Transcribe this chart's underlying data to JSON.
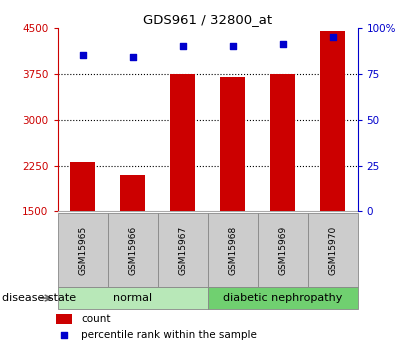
{
  "title": "GDS961 / 32800_at",
  "samples": [
    "GSM15965",
    "GSM15966",
    "GSM15967",
    "GSM15968",
    "GSM15969",
    "GSM15970"
  ],
  "counts": [
    2300,
    2100,
    3750,
    3700,
    3750,
    4450
  ],
  "percentiles": [
    85,
    84,
    90,
    90,
    91,
    95
  ],
  "ylim_left": [
    1500,
    4500
  ],
  "ylim_right": [
    0,
    100
  ],
  "yticks_left": [
    1500,
    2250,
    3000,
    3750,
    4500
  ],
  "yticks_right": [
    0,
    25,
    50,
    75,
    100
  ],
  "ytick_labels_right": [
    "0",
    "25",
    "50",
    "75",
    "100%"
  ],
  "bar_color": "#cc0000",
  "dot_color": "#0000cc",
  "bar_width": 0.5,
  "group_labels": [
    "normal",
    "diabetic nephropathy"
  ],
  "group_ranges": [
    [
      0,
      3
    ],
    [
      3,
      6
    ]
  ],
  "group_colors": [
    "#b8e8b8",
    "#70d070"
  ],
  "disease_state_label": "disease state",
  "legend_items": [
    {
      "label": "count",
      "color": "#cc0000"
    },
    {
      "label": "percentile rank within the sample",
      "color": "#0000cc"
    }
  ],
  "grid_color": "#000000",
  "background_color": "#ffffff",
  "plot_bg_color": "#ffffff",
  "label_box_color": "#cccccc"
}
